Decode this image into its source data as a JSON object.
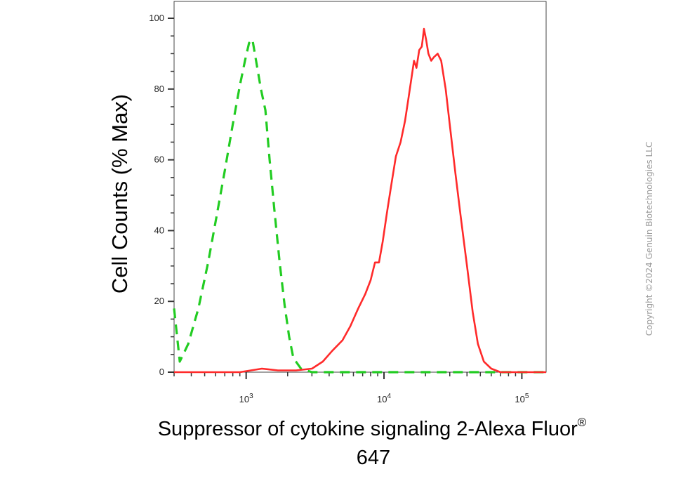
{
  "chart_data": {
    "type": "line",
    "title": "",
    "xlabel": "Suppressor of cytokine signaling 2-Alexa Fluor",
    "xlabel_sup": "®",
    "xlabel_line2": "647",
    "ylabel": "Cell Counts (% Max)",
    "xscale": "log",
    "xlim": [
      300,
      150000
    ],
    "ylim": [
      0,
      100
    ],
    "y_ticks": [
      0,
      20,
      40,
      60,
      80,
      100
    ],
    "x_ticks": [
      {
        "base": "10",
        "exp": "3",
        "value": 1000
      },
      {
        "base": "10",
        "exp": "4",
        "value": 10000
      },
      {
        "base": "10",
        "exp": "5",
        "value": 100000
      }
    ],
    "grid": false,
    "series": [
      {
        "color": "#22cc22",
        "style": "dashed",
        "points": [
          [
            300,
            18
          ],
          [
            330,
            3
          ],
          [
            380,
            8
          ],
          [
            450,
            18
          ],
          [
            530,
            31
          ],
          [
            610,
            44
          ],
          [
            700,
            57
          ],
          [
            800,
            70
          ],
          [
            900,
            81
          ],
          [
            980,
            88
          ],
          [
            1050,
            93
          ],
          [
            1110,
            94
          ],
          [
            1180,
            88
          ],
          [
            1280,
            80
          ],
          [
            1380,
            74
          ],
          [
            1480,
            60
          ],
          [
            1600,
            46
          ],
          [
            1750,
            31
          ],
          [
            1900,
            19
          ],
          [
            2050,
            10
          ],
          [
            2200,
            4
          ],
          [
            2500,
            1
          ],
          [
            3000,
            0
          ],
          [
            150000,
            0
          ]
        ]
      },
      {
        "color": "#ff2a2a",
        "style": "solid",
        "points": [
          [
            300,
            0
          ],
          [
            900,
            0
          ],
          [
            1300,
            1
          ],
          [
            1700,
            0.5
          ],
          [
            2300,
            0.5
          ],
          [
            3000,
            1
          ],
          [
            3600,
            3
          ],
          [
            4200,
            6
          ],
          [
            5000,
            9
          ],
          [
            5700,
            13
          ],
          [
            6500,
            18
          ],
          [
            7300,
            22
          ],
          [
            8000,
            26
          ],
          [
            8600,
            31
          ],
          [
            9200,
            31
          ],
          [
            9800,
            37
          ],
          [
            10500,
            45
          ],
          [
            11300,
            53
          ],
          [
            12200,
            61
          ],
          [
            13200,
            65
          ],
          [
            14200,
            71
          ],
          [
            15000,
            77
          ],
          [
            15800,
            83
          ],
          [
            16500,
            88
          ],
          [
            17200,
            86
          ],
          [
            18000,
            91
          ],
          [
            18800,
            92
          ],
          [
            19500,
            97
          ],
          [
            20200,
            94
          ],
          [
            21000,
            90
          ],
          [
            22000,
            88
          ],
          [
            23000,
            89
          ],
          [
            24500,
            90
          ],
          [
            26000,
            88
          ],
          [
            28000,
            80
          ],
          [
            30000,
            70
          ],
          [
            33000,
            56
          ],
          [
            36000,
            44
          ],
          [
            40000,
            30
          ],
          [
            44000,
            17
          ],
          [
            48000,
            8
          ],
          [
            53000,
            3
          ],
          [
            60000,
            1
          ],
          [
            70000,
            0
          ],
          [
            150000,
            0
          ]
        ]
      }
    ]
  },
  "watermark": "Copyright ©2024 Genuin Biotechnologies LLC"
}
